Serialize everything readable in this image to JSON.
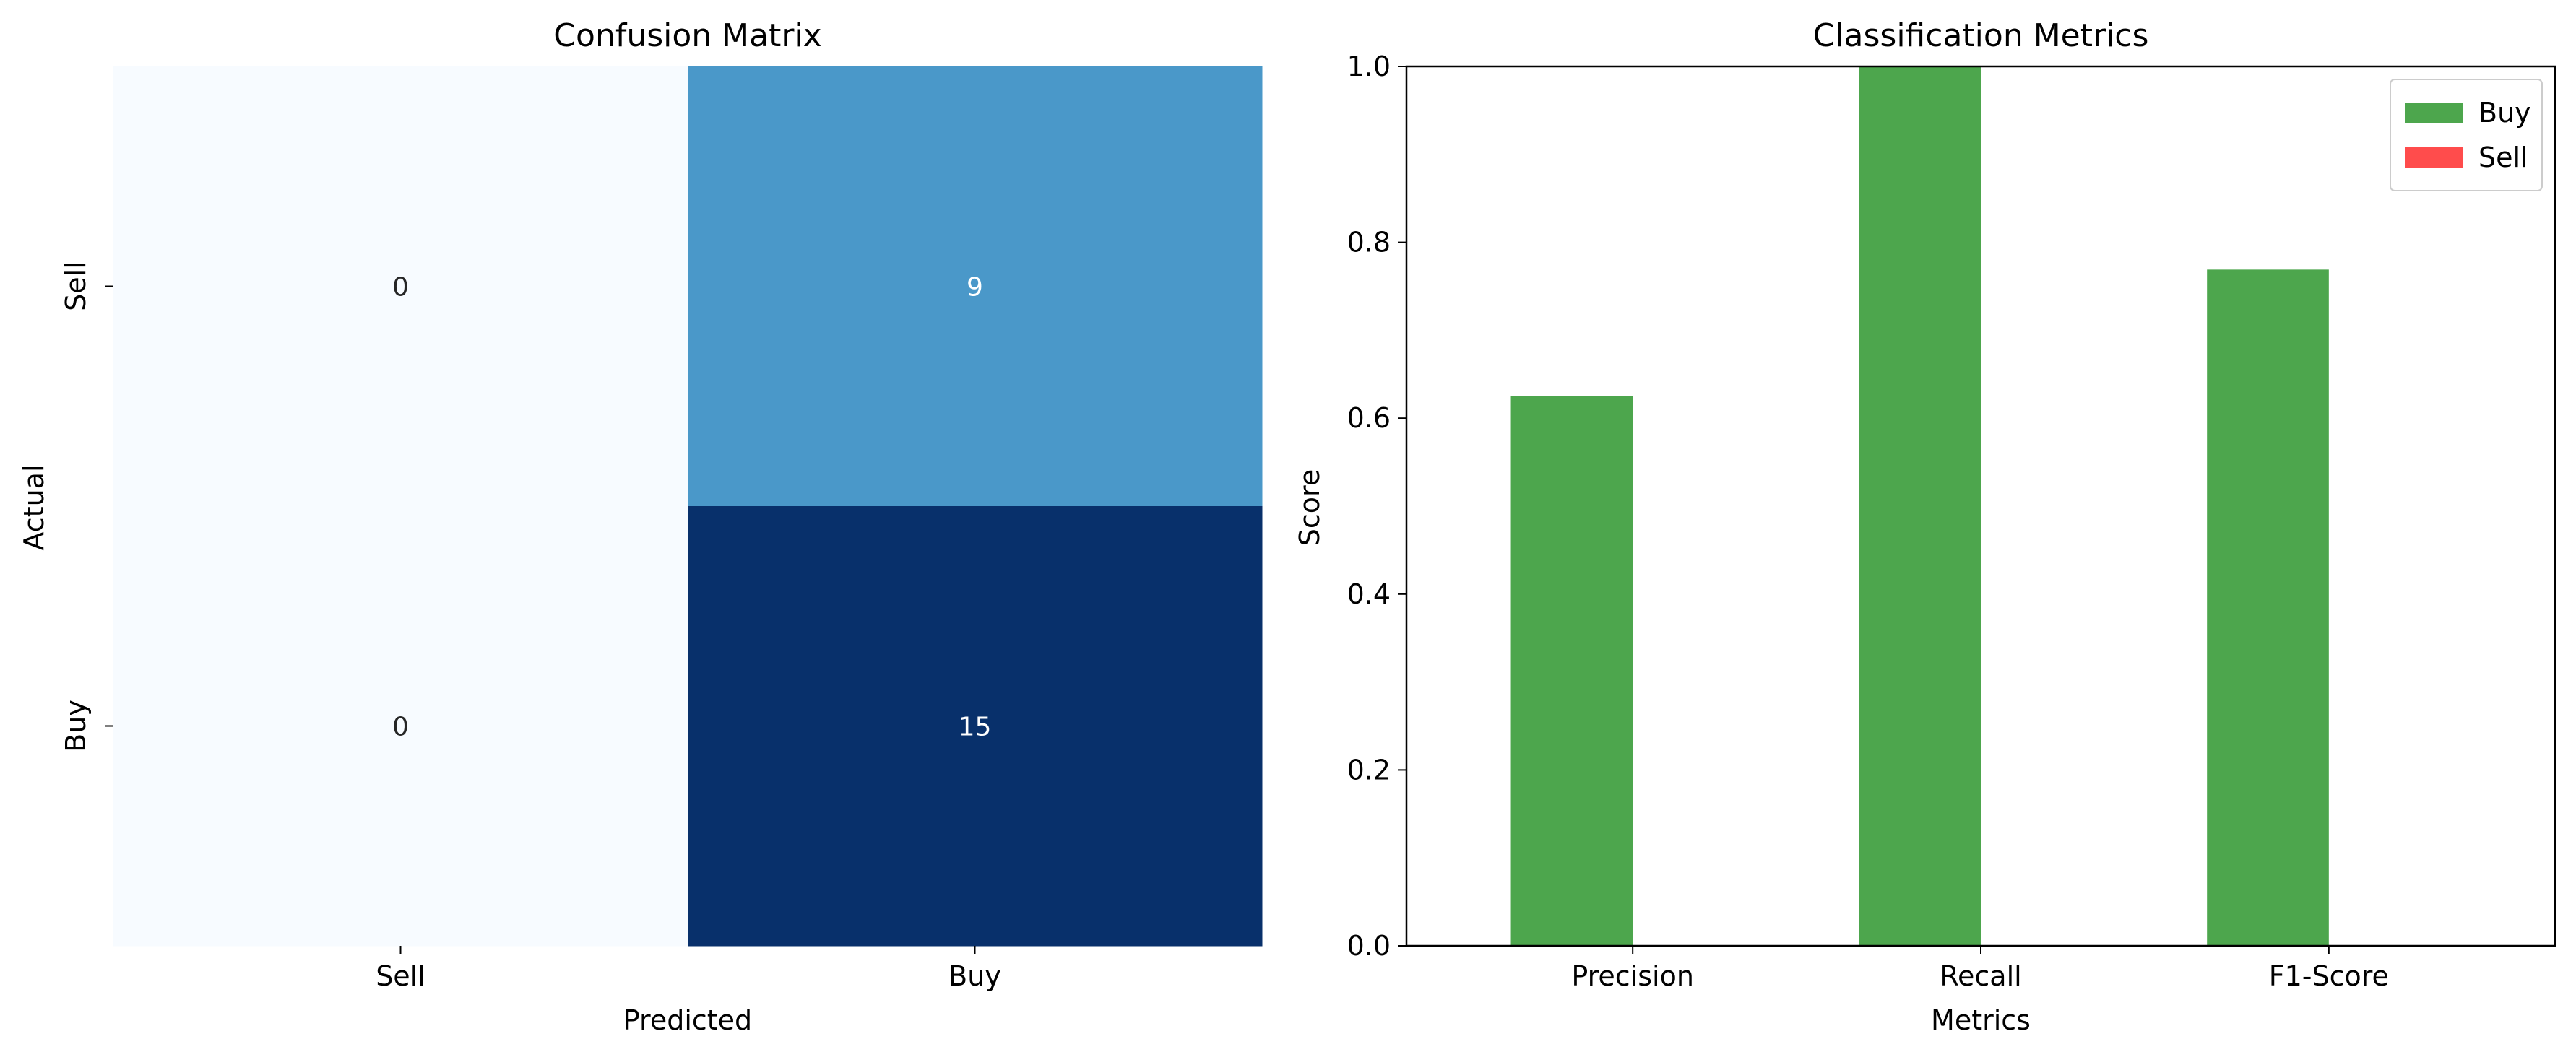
{
  "colors": {
    "buy_bar": "#4da64d",
    "sell_bar": "#ff4c4c",
    "cm_low": "#f7fbff",
    "cm_mid": "#4a98c9",
    "cm_high": "#08306b",
    "text_dark": "#262626",
    "text_light": "#ffffff",
    "axis": "#000000"
  },
  "chart_data": [
    {
      "type": "heatmap",
      "title": "Confusion Matrix",
      "xlabel": "Predicted",
      "ylabel": "Actual",
      "x_labels": [
        "Sell",
        "Buy"
      ],
      "y_labels": [
        "Sell",
        "Buy"
      ],
      "values": [
        [
          0,
          9
        ],
        [
          0,
          15
        ]
      ],
      "cell_labels": [
        [
          "0",
          "9"
        ],
        [
          "0",
          "15"
        ]
      ],
      "colormap": "Blues",
      "vmin": 0,
      "vmax": 15
    },
    {
      "type": "bar",
      "title": "Classification Metrics",
      "xlabel": "Metrics",
      "ylabel": "Score",
      "categories": [
        "Precision",
        "Recall",
        "F1-Score"
      ],
      "ylim": [
        0,
        1.0
      ],
      "yticks": [
        0.0,
        0.2,
        0.4,
        0.6,
        0.8,
        1.0
      ],
      "ytick_labels": [
        "0.0",
        "0.2",
        "0.4",
        "0.6",
        "0.8",
        "1.0"
      ],
      "series": [
        {
          "name": "Buy",
          "values": [
            0.625,
            1.0,
            0.769
          ],
          "color_key": "buy_bar"
        },
        {
          "name": "Sell",
          "values": [
            0.0,
            0.0,
            0.0
          ],
          "color_key": "sell_bar"
        }
      ],
      "legend": "top-right"
    }
  ]
}
